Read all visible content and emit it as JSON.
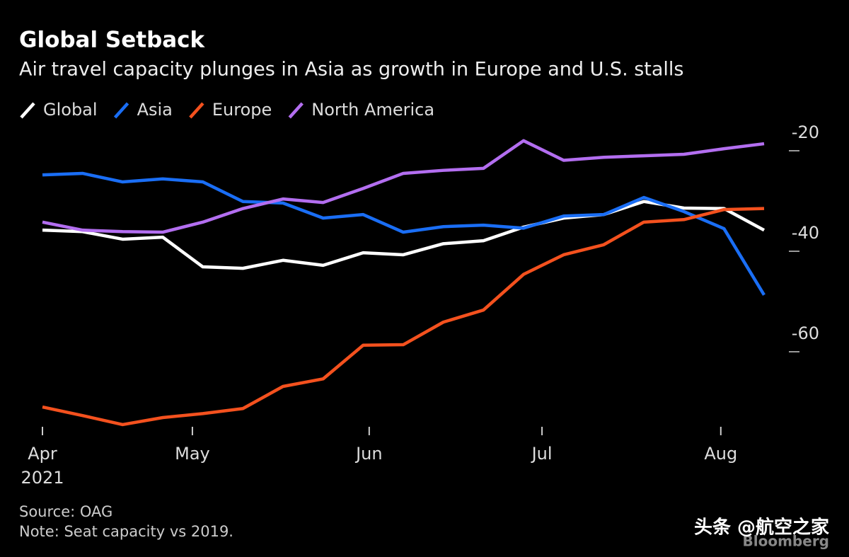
{
  "chart_data": {
    "type": "line",
    "title": "Global Setback",
    "subtitle": "Air travel capacity plunges in Asia as growth in Europe and U.S. stalls",
    "x": [
      0,
      1,
      2,
      3,
      4,
      5,
      6,
      7,
      8,
      9,
      10,
      11,
      12,
      13,
      14,
      15,
      16,
      17,
      18
    ],
    "xlim": [
      0,
      18
    ],
    "xticks": [
      {
        "value": 0,
        "label": "Apr"
      },
      {
        "value": 3.74,
        "label": "May"
      },
      {
        "value": 8.15,
        "label": "Jun"
      },
      {
        "value": 12.46,
        "label": "Jul"
      },
      {
        "value": 16.92,
        "label": "Aug"
      }
    ],
    "x_year": "2021",
    "ylim": [
      -76,
      -16
    ],
    "yticks": [
      -20,
      -40,
      -60
    ],
    "series": [
      {
        "name": "Global",
        "color": "#ffffff",
        "values": [
          -35.8,
          -36.1,
          -37.6,
          -37.2,
          -43.1,
          -43.4,
          -41.8,
          -42.8,
          -40.3,
          -40.7,
          -38.5,
          -37.9,
          -35.2,
          -33.4,
          -32.7,
          -30.1,
          -31.4,
          -31.5,
          -35.8
        ]
      },
      {
        "name": "Asia",
        "color": "#1a6ef5",
        "values": [
          -24.8,
          -24.5,
          -26.2,
          -25.6,
          -26.2,
          -30.1,
          -30.4,
          -33.4,
          -32.7,
          -36.2,
          -35.1,
          -34.8,
          -35.4,
          -33.0,
          -32.7,
          -29.3,
          -32.1,
          -35.5,
          -48.7
        ]
      },
      {
        "name": "Europe",
        "color": "#f4511e",
        "values": [
          -71.0,
          -72.7,
          -74.5,
          -73.1,
          -72.3,
          -71.3,
          -66.9,
          -65.4,
          -58.7,
          -58.6,
          -54.1,
          -51.7,
          -44.6,
          -40.7,
          -38.7,
          -34.2,
          -33.7,
          -31.7,
          -31.5
        ]
      },
      {
        "name": "North America",
        "color": "#b36ef0",
        "values": [
          -34.2,
          -35.8,
          -36.1,
          -36.2,
          -34.2,
          -31.5,
          -29.6,
          -30.3,
          -27.5,
          -24.5,
          -23.9,
          -23.5,
          -18.0,
          -21.9,
          -21.3,
          -21.0,
          -20.7,
          -19.6,
          -18.6
        ]
      }
    ],
    "source": "Source: OAG",
    "note": "Note: Seat capacity vs 2019.",
    "watermark": "头条 @航空之家",
    "brand": "Bloomberg"
  }
}
